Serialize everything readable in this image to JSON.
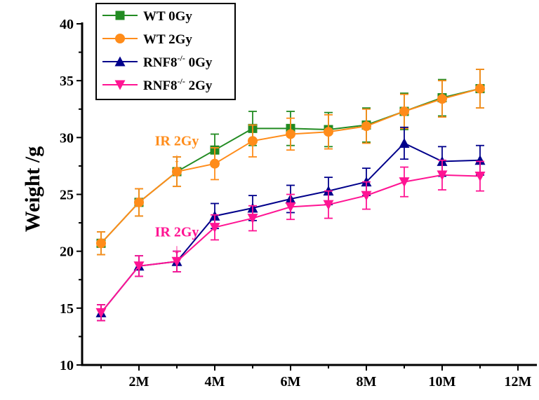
{
  "chart_data": {
    "type": "line",
    "title": "",
    "xlabel": "",
    "ylabel": "Weight /g",
    "xlim": [
      0.5,
      12.5
    ],
    "ylim": [
      10,
      40
    ],
    "x_ticks": [
      2,
      4,
      6,
      8,
      10,
      12
    ],
    "x_tick_labels": [
      "2M",
      "4M",
      "6M",
      "8M",
      "10M",
      "12M"
    ],
    "y_ticks": [
      10,
      15,
      20,
      25,
      30,
      35,
      40
    ],
    "y_tick_labels": [
      "10",
      "15",
      "20",
      "25",
      "30",
      "35",
      "40"
    ],
    "grid": false,
    "legend_position": "top-left",
    "x": [
      1,
      2,
      3,
      4,
      5,
      6,
      7,
      8,
      9,
      10,
      11
    ],
    "series": [
      {
        "name": "WT 0Gy",
        "legend_main": "WT 0Gy",
        "legend_sup": "",
        "legend_tail": "",
        "color": "#228b22",
        "marker": "square",
        "values": [
          20.7,
          24.3,
          27.0,
          28.9,
          30.8,
          30.8,
          30.7,
          31.1,
          32.3,
          33.5,
          34.3
        ],
        "errors": [
          1.0,
          1.2,
          1.3,
          1.4,
          1.5,
          1.5,
          1.5,
          1.5,
          1.6,
          1.6,
          1.7
        ]
      },
      {
        "name": "WT 2Gy",
        "legend_main": "WT 2Gy",
        "legend_sup": "",
        "legend_tail": "",
        "color": "#ff8c1a",
        "marker": "circle",
        "values": [
          20.7,
          24.3,
          27.0,
          27.7,
          29.7,
          30.3,
          30.5,
          31.0,
          32.3,
          33.4,
          34.3
        ],
        "errors": [
          1.0,
          1.2,
          1.3,
          1.4,
          1.4,
          1.4,
          1.5,
          1.5,
          1.5,
          1.6,
          1.7
        ]
      },
      {
        "name": "RNF8-/- 0Gy",
        "legend_main": "RNF8",
        "legend_sup": "-/-",
        "legend_tail": " 0Gy",
        "color": "#00008b",
        "marker": "triangle-up",
        "values": [
          14.6,
          18.7,
          19.1,
          23.1,
          23.8,
          24.6,
          25.3,
          26.1,
          29.5,
          27.9,
          28.0
        ],
        "errors": [
          0.7,
          0.9,
          0.9,
          1.1,
          1.1,
          1.2,
          1.2,
          1.2,
          1.4,
          1.3,
          1.3
        ]
      },
      {
        "name": "RNF8-/- 2Gy",
        "legend_main": "RNF8",
        "legend_sup": "-/-",
        "legend_tail": " 2Gy",
        "color": "#ff1493",
        "marker": "triangle-down",
        "values": [
          14.6,
          18.7,
          19.1,
          22.1,
          22.9,
          23.9,
          24.1,
          24.9,
          26.1,
          26.7,
          26.6
        ],
        "errors": [
          0.7,
          0.9,
          0.9,
          1.1,
          1.1,
          1.1,
          1.2,
          1.2,
          1.3,
          1.3,
          1.3
        ]
      }
    ],
    "annotations": [
      {
        "text": "IR 2Gy",
        "arrow": "↓",
        "x": 3,
        "y": 29.3,
        "color": "#ff8c1a"
      },
      {
        "text": "IR 2Gy",
        "arrow": "↓",
        "x": 3,
        "y": 21.3,
        "color": "#ff1493"
      }
    ]
  }
}
